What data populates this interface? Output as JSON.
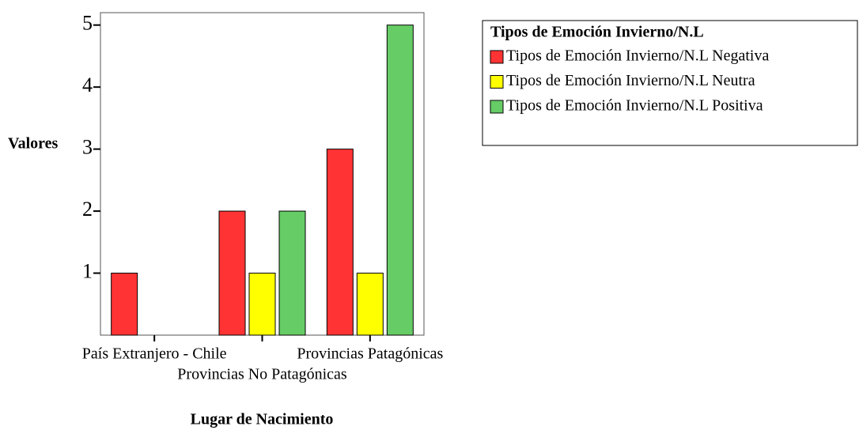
{
  "chart_data": {
    "type": "bar",
    "x_label": "Lugar de Nacimiento",
    "y_label": "Valores",
    "legend_title": "Tipos de Emoción Invierno/N.L",
    "categories": [
      "País Extranjero - Chile",
      "Provincias No Patagónicas",
      "Provincias Patagónicas"
    ],
    "series": [
      {
        "name": "Tipos de Emoción Invierno/N.L Negativa",
        "color": "#ff3333",
        "values": [
          1,
          2,
          3
        ]
      },
      {
        "name": "Tipos de Emoción Invierno/N.L Neutra",
        "color": "#ffff00",
        "values": [
          null,
          1,
          1
        ]
      },
      {
        "name": "Tipos de Emoción Invierno/N.L Positiva",
        "color": "#66cc66",
        "values": [
          null,
          2,
          5
        ]
      }
    ],
    "ylim": [
      0,
      5.2
    ],
    "yticks": [
      1,
      2,
      3,
      4,
      5
    ],
    "grid": false,
    "legend": "right"
  }
}
